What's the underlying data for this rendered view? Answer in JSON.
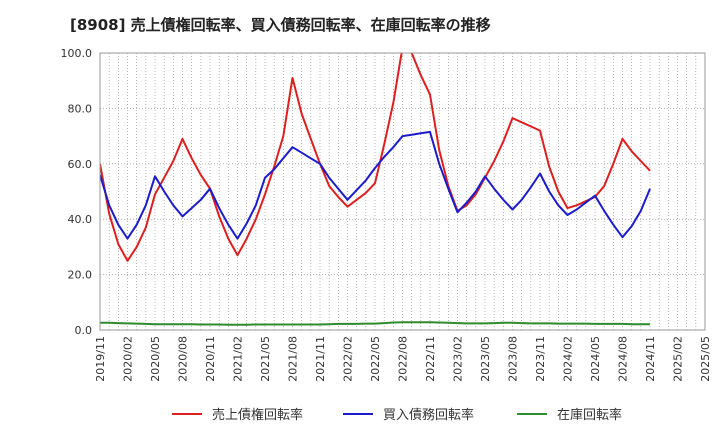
{
  "chart_data": {
    "type": "line",
    "title": "[8908]  売上債権回転率、買入債務回転率、在庫回転率の推移",
    "xlabel": "",
    "ylabel": "",
    "ylim": [
      0,
      100
    ],
    "yticks": [
      "0.0",
      "20.0",
      "40.0",
      "60.0",
      "80.0",
      "100.0"
    ],
    "ytick_values": [
      0,
      20,
      40,
      60,
      80,
      100
    ],
    "x_tick_labels": [
      "2019/11",
      "2020/02",
      "2020/05",
      "2020/08",
      "2020/11",
      "2021/02",
      "2021/05",
      "2021/08",
      "2021/11",
      "2022/02",
      "2022/05",
      "2022/08",
      "2022/11",
      "2023/02",
      "2023/05",
      "2023/08",
      "2023/11",
      "2024/02",
      "2024/05",
      "2024/08",
      "2024/11",
      "2025/02",
      "2025/05"
    ],
    "x": [
      "2019/11",
      "2019/12",
      "2020/01",
      "2020/02",
      "2020/03",
      "2020/04",
      "2020/05",
      "2020/06",
      "2020/07",
      "2020/08",
      "2020/09",
      "2020/10",
      "2020/11",
      "2020/12",
      "2021/01",
      "2021/02",
      "2021/03",
      "2021/04",
      "2021/05",
      "2021/06",
      "2021/07",
      "2021/08",
      "2021/09",
      "2021/10",
      "2021/11",
      "2021/12",
      "2022/01",
      "2022/02",
      "2022/03",
      "2022/04",
      "2022/05",
      "2022/06",
      "2022/07",
      "2022/08",
      "2022/09",
      "2022/10",
      "2022/11",
      "2022/12",
      "2023/01",
      "2023/02",
      "2023/03",
      "2023/04",
      "2023/05",
      "2023/06",
      "2023/07",
      "2023/08",
      "2023/09",
      "2023/10",
      "2023/11",
      "2023/12",
      "2024/01",
      "2024/02",
      "2024/03",
      "2024/04",
      "2024/05",
      "2024/06",
      "2024/07",
      "2024/08",
      "2024/09",
      "2024/10",
      "2024/11"
    ],
    "series": [
      {
        "name": "売上債権回転率",
        "color": "#dd1f1f",
        "values": [
          60,
          42,
          31,
          25,
          30,
          37,
          49,
          55,
          61,
          69,
          62,
          56,
          51,
          41,
          33,
          27,
          33,
          40,
          49,
          59,
          70,
          91,
          78,
          69,
          60,
          52,
          48,
          44.5,
          47,
          49.5,
          53,
          67,
          82,
          102,
          100,
          92,
          85,
          65,
          52,
          43,
          45,
          49,
          55,
          61,
          68,
          76.5,
          75,
          73.5,
          72,
          59,
          50,
          44,
          45,
          46.5,
          48,
          52,
          60,
          69,
          64.5,
          61,
          57.5
        ]
      },
      {
        "name": "買入債務回転率",
        "color": "#1c1ccc",
        "values": [
          56,
          45,
          38,
          33,
          38,
          45,
          55.5,
          50,
          45,
          41,
          44,
          47,
          51,
          44,
          38,
          33,
          38.5,
          45,
          55,
          58,
          62,
          66,
          64,
          62,
          60,
          55,
          51,
          47,
          50.5,
          54,
          58.5,
          62.5,
          66,
          70,
          70.5,
          71,
          71.5,
          60,
          51,
          42.5,
          46,
          50,
          55.5,
          51,
          47,
          43.5,
          47,
          51.5,
          56.5,
          50,
          45,
          41.5,
          43.5,
          46,
          48.5,
          43,
          38,
          33.5,
          37.5,
          43,
          51
        ]
      },
      {
        "name": "在庫回転率",
        "color": "#2e8b2e",
        "values": [
          2.6,
          2.6,
          2.5,
          2.4,
          2.3,
          2.2,
          2.1,
          2.1,
          2.1,
          2.1,
          2.1,
          2.0,
          2.0,
          2.0,
          1.9,
          1.9,
          1.9,
          2.0,
          2.0,
          2.0,
          2.0,
          2.0,
          2.0,
          2.0,
          2.0,
          2.1,
          2.2,
          2.2,
          2.2,
          2.3,
          2.3,
          2.5,
          2.7,
          2.8,
          2.8,
          2.8,
          2.8,
          2.7,
          2.6,
          2.5,
          2.4,
          2.4,
          2.4,
          2.5,
          2.6,
          2.6,
          2.5,
          2.4,
          2.4,
          2.4,
          2.3,
          2.3,
          2.3,
          2.3,
          2.2,
          2.2,
          2.2,
          2.2,
          2.1,
          2.1,
          2.1
        ]
      }
    ],
    "legend_position": "bottom",
    "grid": true
  }
}
